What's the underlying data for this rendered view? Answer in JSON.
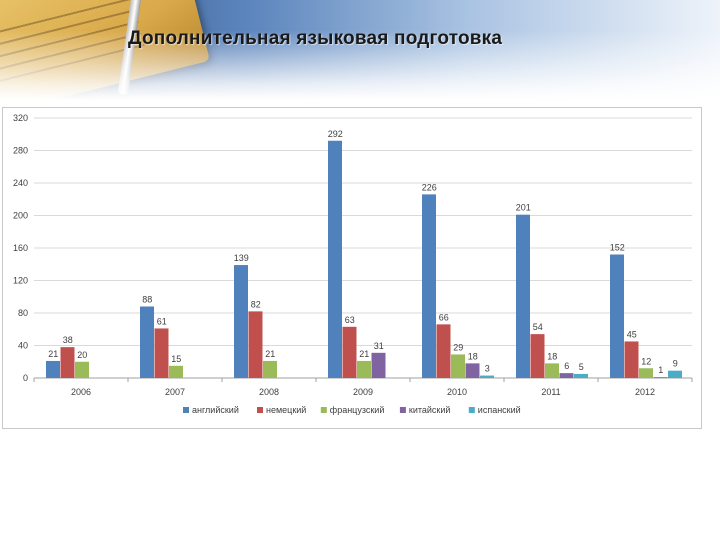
{
  "slide": {
    "title": "Дополнительная языковая подготовка"
  },
  "chart_data": {
    "type": "bar",
    "title": "",
    "xlabel": "",
    "ylabel": "",
    "categories": [
      "2006",
      "2007",
      "2008",
      "2009",
      "2010",
      "2011",
      "2012"
    ],
    "ylim": [
      0,
      320
    ],
    "yticks": [
      "0",
      "40",
      "80",
      "120",
      "160",
      "200",
      "240",
      "280",
      "320"
    ],
    "grid": true,
    "legend_position": "bottom",
    "series": [
      {
        "name": "английский",
        "color": "#4f81bd",
        "values": [
          21,
          88,
          139,
          292,
          226,
          201,
          152
        ]
      },
      {
        "name": "немецкий",
        "color": "#c0504d",
        "values": [
          38,
          61,
          82,
          63,
          66,
          54,
          45
        ]
      },
      {
        "name": "французский",
        "color": "#9bbb59",
        "values": [
          20,
          15,
          21,
          21,
          29,
          18,
          12
        ]
      },
      {
        "name": "китайский",
        "color": "#8064a2",
        "values": [
          null,
          null,
          null,
          31,
          18,
          6,
          1
        ]
      },
      {
        "name": "испанский",
        "color": "#4bacc6",
        "values": [
          null,
          null,
          null,
          null,
          3,
          5,
          9
        ]
      }
    ]
  }
}
